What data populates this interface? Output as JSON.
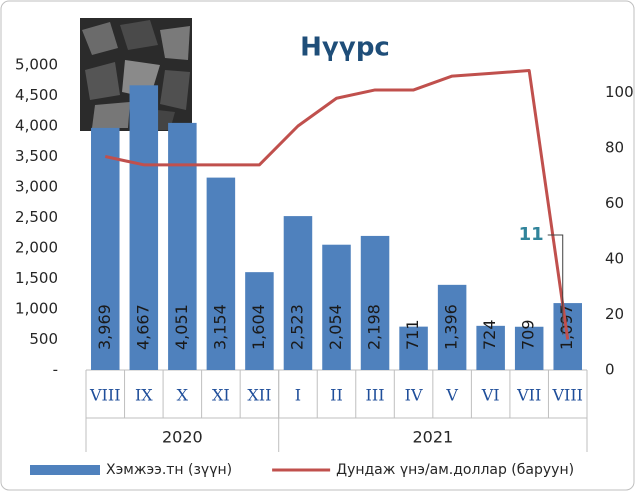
{
  "chart_data": {
    "type": "bar",
    "title": "Нүүрс",
    "groups": [
      {
        "label": "2020",
        "categories": [
          "VIII",
          "IX",
          "X",
          "XI",
          "XII"
        ]
      },
      {
        "label": "2021",
        "categories": [
          "I",
          "II",
          "III",
          "IV",
          "V",
          "VI",
          "VII",
          "VIII"
        ]
      }
    ],
    "series": [
      {
        "name": "Хэмжээ.тн (зүүн)",
        "type": "bar",
        "color": "#4f81bd",
        "values": [
          3969,
          4667,
          4051,
          3154,
          1604,
          2523,
          2054,
          2198,
          711,
          1396,
          724,
          709,
          1097
        ],
        "value_labels": [
          "3,969",
          "4,667",
          "4,051",
          "3,154",
          "1,604",
          "2,523",
          "2,054",
          "2,198",
          "711",
          "1,396",
          "724",
          "709",
          "1,097"
        ]
      },
      {
        "name": "Дундаж үнэ/ам.доллар (баруун)",
        "type": "line",
        "axis": "y2",
        "color": "#c0504d",
        "values": [
          77,
          74,
          74,
          74,
          74,
          88,
          98,
          101,
          101,
          106,
          107,
          108,
          11
        ],
        "value_labels": [
          null,
          null,
          null,
          null,
          null,
          null,
          null,
          null,
          null,
          null,
          null,
          null,
          "11"
        ]
      }
    ],
    "ylim": [
      0,
      5000
    ],
    "yticks": [
      {
        "value": 0,
        "label": "-"
      },
      500,
      {
        "value": 1000,
        "label": "1,000"
      },
      {
        "value": 1500,
        "label": "1,500"
      },
      {
        "value": 2000,
        "label": "2,000"
      },
      {
        "value": 2500,
        "label": "2,500"
      },
      {
        "value": 3000,
        "label": "3,000"
      },
      {
        "value": 3500,
        "label": "3,500"
      },
      {
        "value": 4000,
        "label": "4,000"
      },
      {
        "value": 4500,
        "label": "4,500"
      },
      {
        "value": 5000,
        "label": "5,000"
      }
    ],
    "y2lim": [
      0,
      110
    ],
    "y2ticks": [
      0,
      20,
      40,
      60,
      80,
      100
    ],
    "grid": false,
    "legend": "bottom"
  }
}
